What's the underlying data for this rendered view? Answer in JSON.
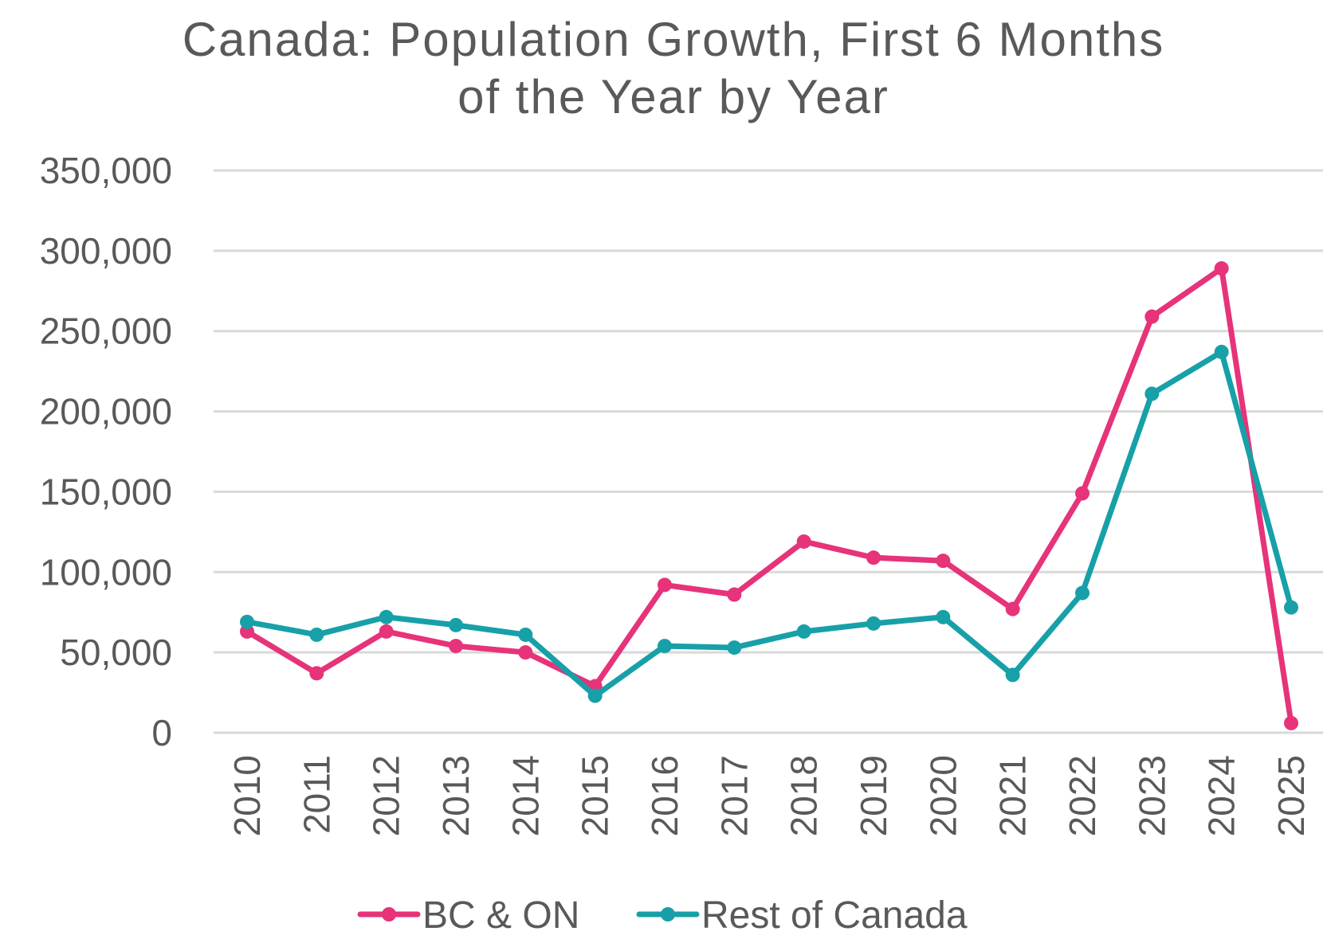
{
  "chart_data": {
    "type": "line",
    "title_lines": [
      "Canada: Population Growth, First 6 Months",
      "of the Year by Year"
    ],
    "title": "Canada: Population Growth, First 6 Months of the Year by Year",
    "xlabel": "",
    "ylabel": "",
    "ylim": [
      0,
      350000
    ],
    "grid": true,
    "legend_position": "bottom",
    "categories": [
      "2010",
      "2011",
      "2012",
      "2013",
      "2014",
      "2015",
      "2016",
      "2017",
      "2018",
      "2019",
      "2020",
      "2021",
      "2022",
      "2023",
      "2024",
      "2025"
    ],
    "y_ticks": [
      0,
      50000,
      100000,
      150000,
      200000,
      250000,
      300000,
      350000
    ],
    "y_tick_labels": [
      "0",
      "50,000",
      "100,000",
      "150,000",
      "200,000",
      "250,000",
      "300,000",
      "350,000"
    ],
    "series": [
      {
        "name": "BC & ON",
        "color": "#e6337a",
        "values": [
          63000,
          37000,
          63000,
          54000,
          50000,
          29000,
          92000,
          86000,
          119000,
          109000,
          107000,
          77000,
          149000,
          259000,
          289000,
          6000
        ]
      },
      {
        "name": "Rest of Canada",
        "color": "#17a0a8",
        "values": [
          69000,
          61000,
          72000,
          67000,
          61000,
          23000,
          54000,
          53000,
          63000,
          68000,
          72000,
          36000,
          87000,
          211000,
          237000,
          78000
        ]
      }
    ]
  }
}
